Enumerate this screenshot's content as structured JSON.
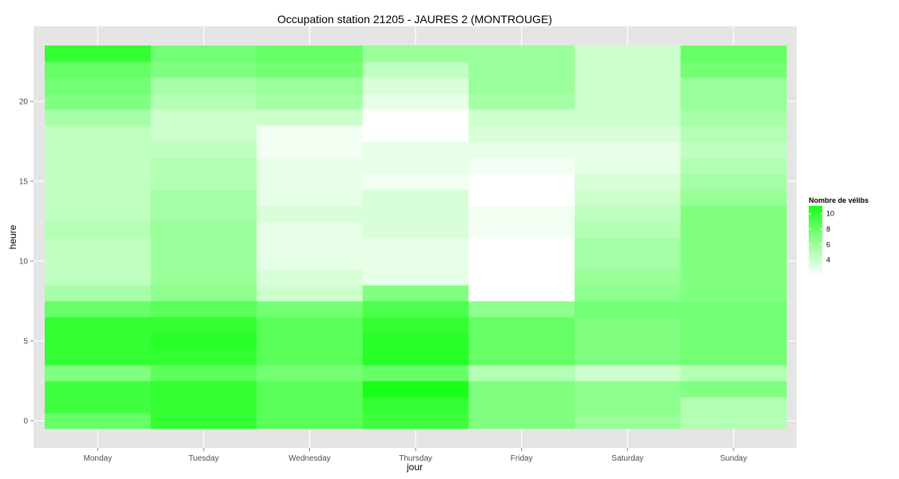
{
  "chart_data": {
    "type": "heatmap",
    "title": "Occupation station 21205 - JAURES 2 (MONTROUGE)",
    "xlabel": "jour",
    "ylabel": "heure",
    "categories": [
      "Monday",
      "Tuesday",
      "Wednesday",
      "Thursday",
      "Friday",
      "Saturday",
      "Sunday"
    ],
    "hours": [
      0,
      1,
      2,
      3,
      4,
      5,
      6,
      7,
      8,
      9,
      10,
      11,
      12,
      13,
      14,
      15,
      16,
      17,
      18,
      19,
      20,
      21,
      22,
      23
    ],
    "ylim": [
      -0.5,
      23.5
    ],
    "y_ticks": [
      0,
      5,
      10,
      15,
      20
    ],
    "grid": true,
    "values": [
      [
        8.0,
        9.5,
        9.5,
        7.0,
        10.0,
        10.0,
        10.0,
        8.0,
        5.5,
        4.5,
        4.5,
        4.5,
        5.0,
        4.5,
        4.5,
        4.5,
        4.5,
        4.5,
        4.5,
        5.5,
        7.0,
        7.5,
        8.0,
        10.0
      ],
      [
        10.0,
        10.0,
        10.0,
        8.5,
        10.0,
        10.5,
        10.0,
        8.5,
        6.5,
        6.0,
        6.0,
        6.0,
        6.0,
        5.5,
        5.5,
        5.0,
        5.0,
        4.5,
        4.0,
        4.0,
        5.0,
        5.5,
        7.0,
        7.5
      ],
      [
        8.5,
        8.5,
        8.5,
        7.5,
        8.5,
        8.5,
        8.5,
        7.5,
        4.0,
        3.5,
        3.0,
        3.0,
        3.0,
        3.5,
        3.0,
        3.0,
        3.0,
        2.5,
        2.5,
        4.0,
        5.5,
        6.0,
        7.5,
        8.0
      ],
      [
        9.5,
        10.0,
        11.0,
        8.0,
        10.5,
        10.5,
        10.0,
        9.0,
        7.0,
        3.0,
        3.0,
        3.0,
        3.5,
        3.5,
        3.5,
        2.5,
        3.0,
        3.0,
        2.0,
        2.0,
        3.0,
        3.5,
        4.5,
        6.0
      ],
      [
        7.0,
        7.0,
        7.0,
        5.0,
        8.0,
        8.0,
        8.0,
        6.5,
        2.0,
        2.0,
        2.0,
        2.0,
        2.5,
        2.5,
        2.0,
        2.0,
        2.5,
        3.0,
        3.5,
        4.0,
        5.5,
        6.0,
        6.0,
        6.0
      ],
      [
        6.0,
        6.5,
        6.5,
        4.0,
        7.0,
        7.0,
        7.0,
        7.5,
        6.5,
        6.0,
        5.5,
        5.5,
        5.0,
        4.5,
        4.0,
        3.5,
        3.0,
        3.0,
        3.5,
        4.0,
        4.0,
        4.0,
        4.0,
        4.0
      ],
      [
        5.0,
        5.0,
        7.0,
        5.0,
        7.5,
        7.5,
        7.5,
        7.5,
        7.0,
        7.0,
        7.0,
        7.0,
        7.0,
        7.0,
        6.0,
        5.5,
        5.0,
        4.5,
        5.0,
        5.5,
        6.0,
        6.0,
        7.5,
        8.0
      ]
    ],
    "color_low": "#ffffff",
    "color_high": "#1aff1a",
    "value_range": [
      2,
      11
    ],
    "legend": {
      "title": "Nombre de vélibs",
      "ticks": [
        4,
        6,
        8,
        10
      ],
      "position": "right"
    }
  }
}
